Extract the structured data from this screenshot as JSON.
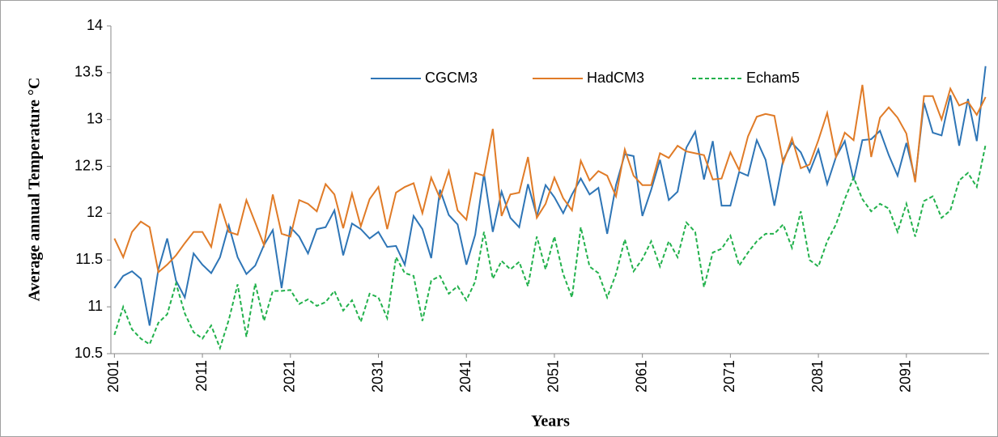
{
  "chart_data": {
    "type": "line",
    "ylabel": "Average annual Temperature °C",
    "xlabel": "Years",
    "x": [
      2001,
      2002,
      2003,
      2004,
      2005,
      2006,
      2007,
      2008,
      2009,
      2010,
      2011,
      2012,
      2013,
      2014,
      2015,
      2016,
      2017,
      2018,
      2019,
      2020,
      2021,
      2022,
      2023,
      2024,
      2025,
      2026,
      2027,
      2028,
      2029,
      2030,
      2031,
      2032,
      2033,
      2034,
      2035,
      2036,
      2037,
      2038,
      2039,
      2040,
      2041,
      2042,
      2043,
      2044,
      2045,
      2046,
      2047,
      2048,
      2049,
      2050,
      2051,
      2052,
      2053,
      2054,
      2055,
      2056,
      2057,
      2058,
      2059,
      2060,
      2061,
      2062,
      2063,
      2064,
      2065,
      2066,
      2067,
      2068,
      2069,
      2070,
      2071,
      2072,
      2073,
      2074,
      2075,
      2076,
      2077,
      2078,
      2079,
      2080,
      2081,
      2082,
      2083,
      2084,
      2085,
      2086,
      2087,
      2088,
      2089,
      2090,
      2091,
      2092,
      2093,
      2094,
      2095,
      2096,
      2097,
      2098,
      2099,
      2100
    ],
    "series": [
      {
        "name": "CGCM3",
        "color": "#2e75b6",
        "dash": false,
        "values": [
          11.2,
          11.33,
          11.38,
          11.3,
          10.8,
          11.4,
          11.73,
          11.28,
          11.1,
          11.57,
          11.45,
          11.36,
          11.53,
          11.87,
          11.53,
          11.35,
          11.44,
          11.66,
          11.82,
          11.2,
          11.85,
          11.75,
          11.57,
          11.83,
          11.85,
          12.03,
          11.55,
          11.89,
          11.83,
          11.73,
          11.8,
          11.64,
          11.65,
          11.45,
          11.97,
          11.83,
          11.52,
          12.25,
          11.98,
          11.88,
          11.45,
          11.77,
          12.42,
          11.8,
          12.23,
          11.95,
          11.85,
          12.31,
          11.97,
          12.3,
          12.17,
          12.0,
          12.2,
          12.37,
          12.2,
          12.27,
          11.78,
          12.3,
          12.63,
          12.61,
          11.97,
          12.25,
          12.57,
          12.14,
          12.23,
          12.7,
          12.87,
          12.36,
          12.77,
          12.08,
          12.08,
          12.44,
          12.4,
          12.78,
          12.57,
          12.08,
          12.57,
          12.75,
          12.65,
          12.44,
          12.68,
          12.31,
          12.6,
          12.77,
          12.35,
          12.78,
          12.79,
          12.88,
          12.62,
          12.4,
          12.75,
          12.36,
          13.18,
          12.86,
          12.83,
          13.26,
          12.72,
          13.22,
          12.77,
          13.57
        ]
      },
      {
        "name": "HadCM3",
        "color": "#e07b27",
        "dash": false,
        "values": [
          11.73,
          11.53,
          11.8,
          11.91,
          11.85,
          11.37,
          11.45,
          11.55,
          11.68,
          11.8,
          11.8,
          11.64,
          12.1,
          11.8,
          11.77,
          12.14,
          11.9,
          11.66,
          12.2,
          11.78,
          11.75,
          12.14,
          12.1,
          12.02,
          12.31,
          12.2,
          11.84,
          12.21,
          11.86,
          12.15,
          12.28,
          11.83,
          12.22,
          12.28,
          12.32,
          12.0,
          12.38,
          12.16,
          12.45,
          12.03,
          11.93,
          12.43,
          12.4,
          12.9,
          11.97,
          12.2,
          12.22,
          12.6,
          11.95,
          12.1,
          12.38,
          12.16,
          12.03,
          12.56,
          12.35,
          12.45,
          12.4,
          12.18,
          12.68,
          12.4,
          12.3,
          12.3,
          12.64,
          12.59,
          12.72,
          12.66,
          12.64,
          12.62,
          12.36,
          12.37,
          12.65,
          12.46,
          12.82,
          13.03,
          13.06,
          13.04,
          12.54,
          12.8,
          12.48,
          12.52,
          12.78,
          13.07,
          12.6,
          12.86,
          12.78,
          13.37,
          12.6,
          13.02,
          13.13,
          13.02,
          12.85,
          12.33,
          13.25,
          13.25,
          13.0,
          13.33,
          13.15,
          13.19,
          13.05,
          13.24
        ]
      },
      {
        "name": "Echam5",
        "color": "#22b14c",
        "dash": true,
        "values": [
          10.7,
          11.0,
          10.76,
          10.66,
          10.6,
          10.83,
          10.92,
          11.25,
          10.93,
          10.73,
          10.66,
          10.8,
          10.56,
          10.86,
          11.24,
          10.68,
          11.25,
          10.85,
          11.17,
          11.17,
          11.18,
          11.03,
          11.08,
          11.01,
          11.05,
          11.17,
          10.96,
          11.07,
          10.84,
          11.14,
          11.1,
          10.88,
          11.53,
          11.36,
          11.33,
          10.85,
          11.28,
          11.33,
          11.14,
          11.22,
          11.07,
          11.27,
          11.8,
          11.3,
          11.49,
          11.4,
          11.48,
          11.22,
          11.75,
          11.4,
          11.75,
          11.35,
          11.1,
          11.85,
          11.43,
          11.36,
          11.1,
          11.35,
          11.72,
          11.38,
          11.51,
          11.7,
          11.43,
          11.7,
          11.53,
          11.9,
          11.8,
          11.21,
          11.58,
          11.62,
          11.76,
          11.44,
          11.58,
          11.7,
          11.78,
          11.78,
          11.88,
          11.63,
          12.02,
          11.5,
          11.43,
          11.7,
          11.88,
          12.15,
          12.38,
          12.15,
          12.02,
          12.1,
          12.05,
          11.8,
          12.1,
          11.75,
          12.13,
          12.18,
          11.95,
          12.03,
          12.35,
          12.43,
          12.28,
          12.73
        ]
      }
    ],
    "xlim": [
      2000.6,
      2100.4
    ],
    "xticks": [
      2001,
      2011,
      2021,
      2031,
      2041,
      2051,
      2061,
      2071,
      2081,
      2091
    ],
    "ylim": [
      10.5,
      14
    ],
    "yticks": [
      10.5,
      11,
      11.5,
      12,
      12.5,
      13,
      13.5,
      14
    ],
    "grid": false,
    "legend": "top"
  }
}
